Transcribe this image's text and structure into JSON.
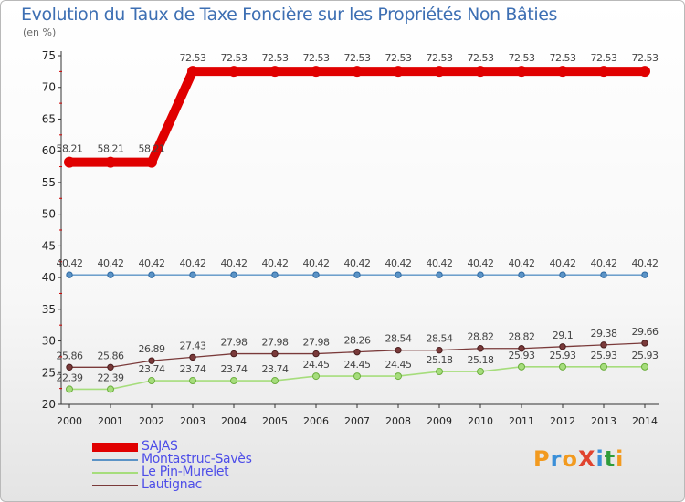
{
  "chart_data": {
    "type": "line",
    "title": "Evolution du Taux de Taxe Foncière sur les Propriétés Non Bâties",
    "subtitle": "(en %)",
    "xlabel": "",
    "ylabel": "",
    "categories": [
      "2000",
      "2001",
      "2002",
      "2003",
      "2004",
      "2005",
      "2006",
      "2007",
      "2008",
      "2009",
      "2010",
      "2011",
      "2012",
      "2013",
      "2014"
    ],
    "ylim": [
      20,
      75
    ],
    "yticks": [
      20,
      25,
      30,
      35,
      40,
      45,
      50,
      55,
      60,
      65,
      70,
      75
    ],
    "grid": false,
    "legend_position": "bottom-left",
    "series": [
      {
        "name": "SAJAS",
        "color": "#e00000",
        "values": [
          58.21,
          58.21,
          58.21,
          72.53,
          72.53,
          72.53,
          72.53,
          72.53,
          72.53,
          72.53,
          72.53,
          72.53,
          72.53,
          72.53,
          72.53
        ],
        "labels": [
          "58.21",
          "58.21",
          "58.21",
          "72.53",
          "72.53",
          "72.53",
          "72.53",
          "72.53",
          "72.53",
          "72.53",
          "72.53",
          "72.53",
          "72.53",
          "72.53",
          "72.53"
        ]
      },
      {
        "name": "Montastruc-Savès",
        "color": "#5b93c6",
        "values": [
          40.42,
          40.42,
          40.42,
          40.42,
          40.42,
          40.42,
          40.42,
          40.42,
          40.42,
          40.42,
          40.42,
          40.42,
          40.42,
          40.42,
          40.42
        ],
        "labels": [
          "40.42",
          "40.42",
          "40.42",
          "40.42",
          "40.42",
          "40.42",
          "40.42",
          "40.42",
          "40.42",
          "40.42",
          "40.42",
          "40.42",
          "40.42",
          "40.42",
          "40.42"
        ]
      },
      {
        "name": "Le Pin-Murelet",
        "color": "#a6dd7c",
        "values": [
          22.39,
          22.39,
          23.74,
          23.74,
          23.74,
          23.74,
          24.45,
          24.45,
          24.45,
          25.18,
          25.18,
          25.93,
          25.93,
          25.93,
          25.93
        ],
        "labels": [
          "22.39",
          "22.39",
          "23.74",
          "23.74",
          "23.74",
          "23.74",
          "24.45",
          "24.45",
          "24.45",
          "25.18",
          "25.18",
          "25.93",
          "25.93",
          "25.93",
          "25.93"
        ]
      },
      {
        "name": "Lautignac",
        "color": "#7a3a3a",
        "values": [
          25.86,
          25.86,
          26.89,
          27.43,
          27.98,
          27.98,
          27.98,
          28.26,
          28.54,
          28.54,
          28.82,
          28.82,
          29.1,
          29.38,
          29.66
        ],
        "labels": [
          "25.86",
          "25.86",
          "26.89",
          "27.43",
          "27.98",
          "27.98",
          "27.98",
          "28.26",
          "28.54",
          "28.54",
          "28.82",
          "28.82",
          "29.1",
          "29.38",
          "29.66"
        ]
      }
    ]
  },
  "logo": {
    "text": "ProXiti"
  }
}
